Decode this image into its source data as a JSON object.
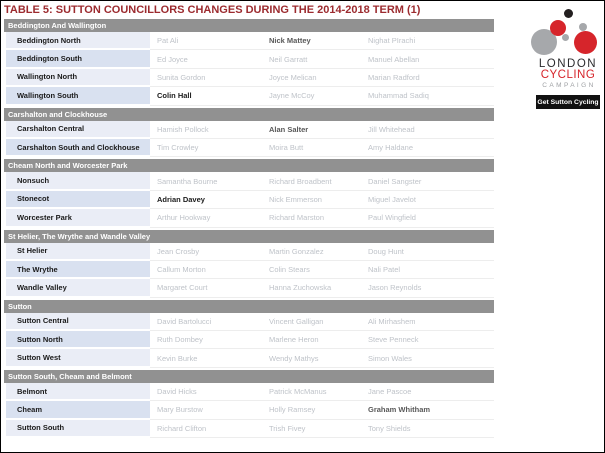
{
  "title": "TABLE 5: SUTTON COUNCILLORS CHANGES DURING THE 2014-2018 TERM (1)",
  "colors": {
    "title_red": "#9C2B2F",
    "section_bar_gray": "#919191",
    "row_band_light": "#EAEDF6",
    "row_band_dark": "#D9E1F0",
    "name_muted": "#BFC3C9",
    "name_emphasis": "#595959",
    "name_strong": "#1B1B1B"
  },
  "sections": [
    {
      "name": "Beddington And Wallington",
      "rows": [
        {
          "ward": "Beddington North",
          "names": [
            {
              "text": "Pat Ali",
              "style": "muted"
            },
            {
              "text": "Nick Mattey",
              "style": "emphasis"
            },
            {
              "text": "Nighat PIrachi",
              "style": "muted"
            }
          ]
        },
        {
          "ward": "Beddington South",
          "names": [
            {
              "text": "Ed Joyce",
              "style": "muted"
            },
            {
              "text": "Neil Garratt",
              "style": "muted"
            },
            {
              "text": "Manuel Abellan",
              "style": "muted"
            }
          ]
        },
        {
          "ward": "Wallington North",
          "names": [
            {
              "text": "Sunita Gordon",
              "style": "muted"
            },
            {
              "text": "Joyce Melican",
              "style": "muted"
            },
            {
              "text": "Marian Radford",
              "style": "muted"
            }
          ]
        },
        {
          "ward": "Wallington South",
          "names": [
            {
              "text": "Colin Hall",
              "style": "strong"
            },
            {
              "text": "Jayne McCoy",
              "style": "muted"
            },
            {
              "text": "Muhammad Sadiq",
              "style": "muted"
            }
          ]
        }
      ]
    },
    {
      "name": "Carshalton and Clockhouse",
      "rows": [
        {
          "ward": "Carshalton Central",
          "names": [
            {
              "text": "Hamish Pollock",
              "style": "muted"
            },
            {
              "text": "Alan Salter",
              "style": "emphasis"
            },
            {
              "text": "Jill Whitehead",
              "style": "muted"
            }
          ]
        },
        {
          "ward": "Carshalton South and Clockhouse",
          "names": [
            {
              "text": "Tim Crowley",
              "style": "muted"
            },
            {
              "text": "Moira Butt",
              "style": "muted"
            },
            {
              "text": "Amy Haldane",
              "style": "muted"
            }
          ]
        }
      ]
    },
    {
      "name": "Cheam North and Worcester Park",
      "rows": [
        {
          "ward": "Nonsuch",
          "names": [
            {
              "text": "Samantha Bourne",
              "style": "muted"
            },
            {
              "text": "Richard Broadbent",
              "style": "muted"
            },
            {
              "text": "Daniel Sangster",
              "style": "muted"
            }
          ]
        },
        {
          "ward": "Stonecot",
          "names": [
            {
              "text": "Adrian Davey",
              "style": "strong"
            },
            {
              "text": "Nick Emmerson",
              "style": "muted"
            },
            {
              "text": "Miguel Javelot",
              "style": "muted"
            }
          ]
        },
        {
          "ward": "Worcester Park",
          "names": [
            {
              "text": "Arthur Hookway",
              "style": "muted"
            },
            {
              "text": "Richard Marston",
              "style": "muted"
            },
            {
              "text": "Paul Wingfield",
              "style": "muted"
            }
          ]
        }
      ]
    },
    {
      "name": "St Helier, The Wrythe and Wandle Valley",
      "rows": [
        {
          "ward": "St Helier",
          "names": [
            {
              "text": "Jean Crosby",
              "style": "muted"
            },
            {
              "text": "Martin Gonzalez",
              "style": "muted"
            },
            {
              "text": "Doug Hunt",
              "style": "muted"
            }
          ]
        },
        {
          "ward": "The Wrythe",
          "names": [
            {
              "text": "Callum Morton",
              "style": "muted"
            },
            {
              "text": "Colin Stears",
              "style": "muted"
            },
            {
              "text": "Nali Patel",
              "style": "muted"
            }
          ]
        },
        {
          "ward": "Wandle Valley",
          "names": [
            {
              "text": "Margaret Court",
              "style": "muted"
            },
            {
              "text": "Hanna Zuchowska",
              "style": "muted"
            },
            {
              "text": "Jason Reynolds",
              "style": "muted"
            }
          ]
        }
      ]
    },
    {
      "name": "Sutton",
      "rows": [
        {
          "ward": "Sutton Central",
          "names": [
            {
              "text": "David Bartolucci",
              "style": "muted"
            },
            {
              "text": "Vincent Galligan",
              "style": "muted"
            },
            {
              "text": "Ali Mirhashem",
              "style": "muted"
            }
          ]
        },
        {
          "ward": "Sutton North",
          "names": [
            {
              "text": "Ruth Dombey",
              "style": "muted"
            },
            {
              "text": "Marlene Heron",
              "style": "muted"
            },
            {
              "text": "Steve Penneck",
              "style": "muted"
            }
          ]
        },
        {
          "ward": "Sutton West",
          "names": [
            {
              "text": "Kevin Burke",
              "style": "muted"
            },
            {
              "text": "Wendy Mathys",
              "style": "muted"
            },
            {
              "text": "Simon Wales",
              "style": "muted"
            }
          ]
        }
      ]
    },
    {
      "name": "Sutton South, Cheam and Belmont",
      "rows": [
        {
          "ward": "Belmont",
          "names": [
            {
              "text": "David Hicks",
              "style": "muted"
            },
            {
              "text": "Patrick McManus",
              "style": "muted"
            },
            {
              "text": "Jane Pascoe",
              "style": "muted"
            }
          ]
        },
        {
          "ward": "Cheam",
          "names": [
            {
              "text": "Mary Burstow",
              "style": "muted"
            },
            {
              "text": "Holly Ramsey",
              "style": "muted"
            },
            {
              "text": "Graham Whitham",
              "style": "emphasis"
            }
          ]
        },
        {
          "ward": "Sutton South",
          "names": [
            {
              "text": "Richard Clifton",
              "style": "muted"
            },
            {
              "text": "Trish Fivey",
              "style": "muted"
            },
            {
              "text": "Tony Shields",
              "style": "muted"
            }
          ]
        }
      ]
    }
  ],
  "logo": {
    "icon": "lcc-circles-logo",
    "line1": "LONDON",
    "line2": "CYCLING",
    "line3": "CAMPAIGN",
    "badge": "Get Sutton Cycling",
    "colors": {
      "red": "#D6252B",
      "gray": "#A6A8AB",
      "dark": "#231F20",
      "badge_bg": "#111111"
    }
  }
}
